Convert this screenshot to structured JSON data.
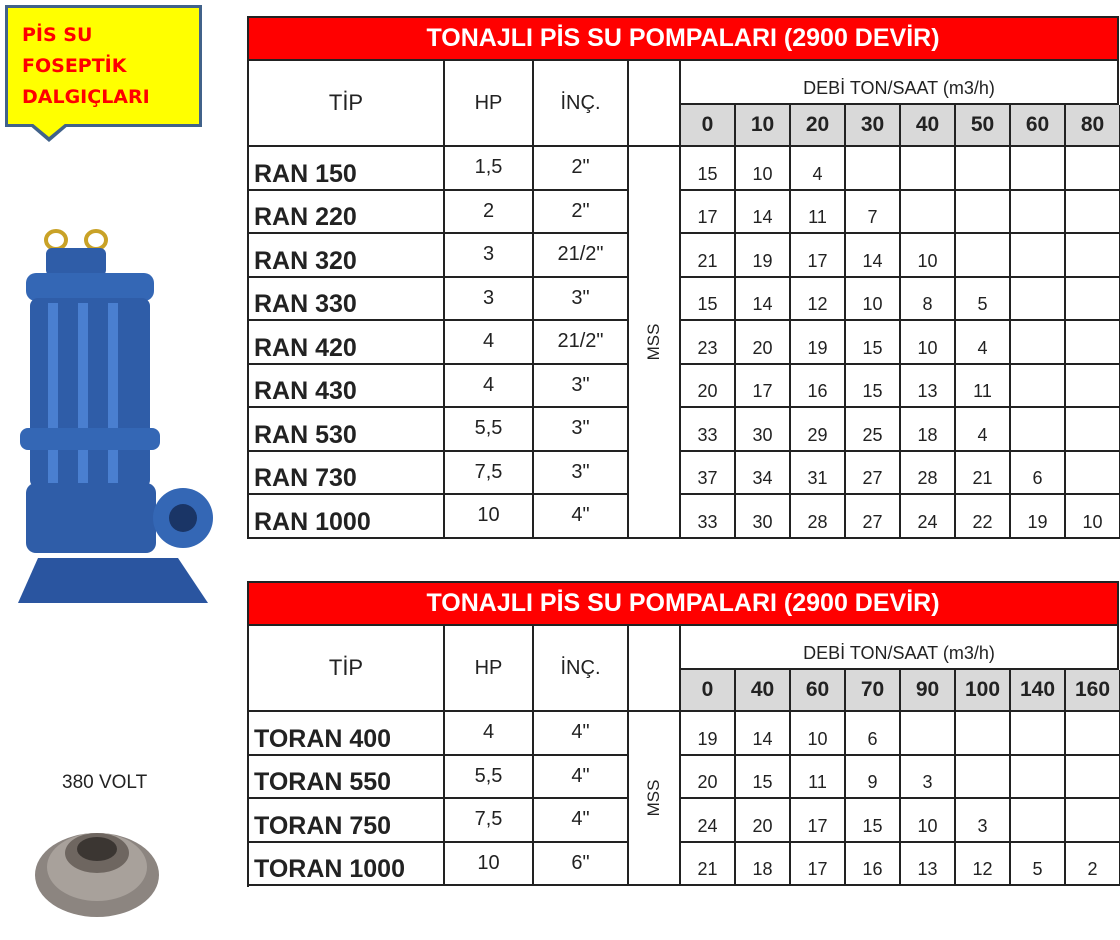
{
  "callout": {
    "lines": [
      "PİS SU",
      "FOSEPTİK",
      "DALGIÇLARI"
    ]
  },
  "voltage_label": "380 VOLT",
  "colors": {
    "title_bg": "#ff0000",
    "callout_bg": "#ffff00",
    "callout_border": "#41628a",
    "flow_header_bg": "#d9d9d9",
    "pump_body": "#2f5da8"
  },
  "tables": [
    {
      "title": "TONAJLI PİS SU POMPALARI  (2900 DEVİR)",
      "headers": {
        "type": "TİP",
        "hp": "HP",
        "inch": "İNÇ.",
        "head_unit": "MSS",
        "flow_label": "DEBİ TON/SAAT (m3/h)"
      },
      "flows": [
        "0",
        "10",
        "20",
        "30",
        "40",
        "50",
        "60",
        "80"
      ],
      "rows": [
        {
          "model": "RAN 150",
          "hp": "1,5",
          "inch": "2\"",
          "values": [
            "15",
            "10",
            "4",
            "",
            "",
            "",
            "",
            ""
          ]
        },
        {
          "model": "RAN 220",
          "hp": "2",
          "inch": "2\"",
          "values": [
            "17",
            "14",
            "11",
            "7",
            "",
            "",
            "",
            ""
          ]
        },
        {
          "model": "RAN 320",
          "hp": "3",
          "inch": "21/2\"",
          "values": [
            "21",
            "19",
            "17",
            "14",
            "10",
            "",
            "",
            ""
          ]
        },
        {
          "model": "RAN 330",
          "hp": "3",
          "inch": "3\"",
          "values": [
            "15",
            "14",
            "12",
            "10",
            "8",
            "5",
            "",
            ""
          ]
        },
        {
          "model": "RAN 420",
          "hp": "4",
          "inch": "21/2\"",
          "values": [
            "23",
            "20",
            "19",
            "15",
            "10",
            "4",
            "",
            ""
          ]
        },
        {
          "model": "RAN 430",
          "hp": "4",
          "inch": "3\"",
          "values": [
            "20",
            "17",
            "16",
            "15",
            "13",
            "11",
            "",
            ""
          ]
        },
        {
          "model": "RAN 530",
          "hp": "5,5",
          "inch": "3\"",
          "values": [
            "33",
            "30",
            "29",
            "25",
            "18",
            "4",
            "",
            ""
          ]
        },
        {
          "model": "RAN 730",
          "hp": "7,5",
          "inch": "3\"",
          "values": [
            "37",
            "34",
            "31",
            "27",
            "28",
            "21",
            "6",
            ""
          ]
        },
        {
          "model": "RAN 1000",
          "hp": "10",
          "inch": "4\"",
          "values": [
            "33",
            "30",
            "28",
            "27",
            "24",
            "22",
            "19",
            "10"
          ]
        }
      ]
    },
    {
      "title": "TONAJLI PİS SU POMPALARI  (2900 DEVİR)",
      "headers": {
        "type": "TİP",
        "hp": "HP",
        "inch": "İNÇ.",
        "head_unit": "MSS",
        "flow_label": "DEBİ TON/SAAT (m3/h)"
      },
      "flows": [
        "0",
        "40",
        "60",
        "70",
        "90",
        "100",
        "140",
        "160"
      ],
      "rows": [
        {
          "model": "TORAN 400",
          "hp": "4",
          "inch": "4\"",
          "values": [
            "19",
            "14",
            "10",
            "6",
            "",
            "",
            "",
            ""
          ]
        },
        {
          "model": "TORAN 550",
          "hp": "5,5",
          "inch": "4\"",
          "values": [
            "20",
            "15",
            "11",
            "9",
            "3",
            "",
            "",
            ""
          ]
        },
        {
          "model": "TORAN 750",
          "hp": "7,5",
          "inch": "4\"",
          "values": [
            "24",
            "20",
            "17",
            "15",
            "10",
            "3",
            "",
            ""
          ]
        },
        {
          "model": "TORAN 1000",
          "hp": "10",
          "inch": "6\"",
          "values": [
            "21",
            "18",
            "17",
            "16",
            "13",
            "12",
            "5",
            "2"
          ]
        }
      ]
    }
  ]
}
